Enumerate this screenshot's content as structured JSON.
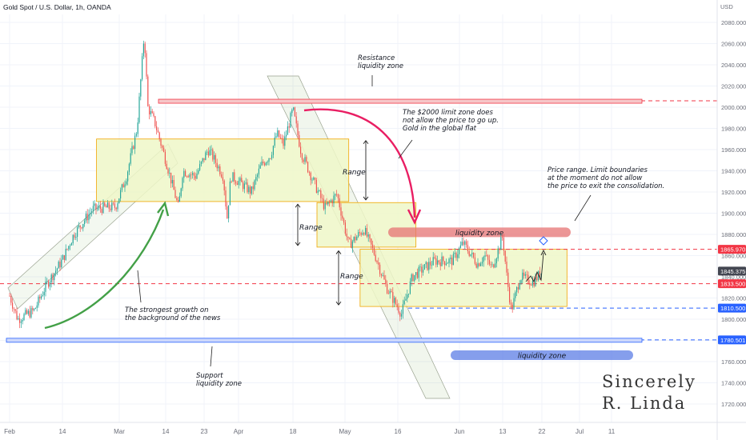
{
  "header": {
    "symbol": "Gold Spot / U.S. Dollar, 1h, OANDA"
  },
  "chart_data": {
    "type": "candlestick",
    "currency": "USD",
    "ylim": [
      1705,
      2095
    ],
    "y_ticks": [
      1720,
      1740,
      1760,
      1780,
      1800,
      1820,
      1840,
      1860,
      1880,
      1900,
      1920,
      1940,
      1960,
      1980,
      2000,
      2020,
      2040,
      2060,
      2080
    ],
    "x_ticks": [
      "Feb",
      "14",
      "Mar",
      "14",
      "23",
      "Apr",
      "18",
      "May",
      "16",
      "Jun",
      "13",
      "22",
      "Jul",
      "11"
    ],
    "price_path": [
      [
        "Feb 1",
        1822
      ],
      [
        "Feb 3",
        1800
      ],
      [
        "Feb 7",
        1808
      ],
      [
        "Feb 10",
        1832
      ],
      [
        "Feb 14",
        1856
      ],
      [
        "Feb 17",
        1880
      ],
      [
        "Feb 22",
        1904
      ],
      [
        "Feb 28",
        1906
      ],
      [
        "Mar 3",
        1935
      ],
      [
        "Mar 6",
        1980
      ],
      [
        "Mar 8",
        2070
      ],
      [
        "Mar 9",
        2000
      ],
      [
        "Mar 11",
        1985
      ],
      [
        "Mar 14",
        1950
      ],
      [
        "Mar 17",
        1905
      ],
      [
        "Mar 18",
        1940
      ],
      [
        "Mar 21",
        1935
      ],
      [
        "Mar 24",
        1960
      ],
      [
        "Mar 25",
        1955
      ],
      [
        "Mar 28",
        1935
      ],
      [
        "Mar 29",
        1895
      ],
      [
        "Mar 30",
        1935
      ],
      [
        "Apr 1",
        1930
      ],
      [
        "Apr 5",
        1920
      ],
      [
        "Apr 8",
        1945
      ],
      [
        "Apr 11",
        1955
      ],
      [
        "Apr 13",
        1975
      ],
      [
        "Apr 15",
        1965
      ],
      [
        "Apr 18",
        1998
      ],
      [
        "Apr 20",
        1958
      ],
      [
        "Apr 22",
        1940
      ],
      [
        "Apr 26",
        1905
      ],
      [
        "Apr 29",
        1918
      ],
      [
        "May 2",
        1870
      ],
      [
        "May 6",
        1885
      ],
      [
        "May 9",
        1860
      ],
      [
        "May 12",
        1830
      ],
      [
        "May 16",
        1805
      ],
      [
        "May 19",
        1840
      ],
      [
        "May 23",
        1850
      ],
      [
        "May 25",
        1855
      ],
      [
        "May 30",
        1855
      ],
      [
        "Jun 2",
        1872
      ],
      [
        "Jun 6",
        1852
      ],
      [
        "Jun 8",
        1860
      ],
      [
        "Jun 10",
        1848
      ],
      [
        "Jun 13",
        1878
      ],
      [
        "Jun 14",
        1838
      ],
      [
        "Jun 15",
        1808
      ],
      [
        "Jun 17",
        1840
      ],
      [
        "Jun 20",
        1835
      ],
      [
        "Jun 22",
        1845
      ]
    ],
    "price_labels": [
      {
        "value": 1865.97,
        "text": "1865.970",
        "color": "#f23645"
      },
      {
        "value": 1845.375,
        "text": "1845.375",
        "color": "#434651"
      },
      {
        "value": 1833.5,
        "text": "1833.500",
        "color": "#f23645"
      },
      {
        "value": 1810.5,
        "text": "1810.500",
        "color": "#2962ff"
      },
      {
        "value": 1780.501,
        "text": "1780.501",
        "color": "#2962ff"
      }
    ],
    "horizontal_levels": [
      {
        "value": 1865.97,
        "color": "#f23645"
      },
      {
        "value": 1833.5,
        "color": "#f23645"
      },
      {
        "value": 1810.5,
        "color": "#2962ff"
      },
      {
        "value": 1780.5,
        "color": "#2962ff"
      },
      {
        "value": 2006,
        "color": "#f23645"
      }
    ],
    "range_boxes": [
      {
        "from": "Feb 23",
        "to": "May 2",
        "low": 1911,
        "high": 1970,
        "label": "Range"
      },
      {
        "from": "Apr 24",
        "to": "May 20",
        "low": 1868,
        "high": 1910,
        "label": "Range"
      },
      {
        "from": "May 5",
        "to": "Jun 28",
        "low": 1812,
        "high": 1866,
        "label": "Range"
      }
    ],
    "liquidity_zones": [
      {
        "label": "liquidity zone",
        "color": "#e57373",
        "value": 1882
      },
      {
        "label": "liquidity zone",
        "color": "#5c7ee6",
        "value": 1766
      }
    ],
    "annotations": [
      "Resistance\nliquidity zone",
      "The $2000 limit zone does\nnot allow the price to go up.\nGold in the global flat",
      "Price range. Limit boundaries\nat the moment do not allow\nthe price to exit the consolidation.",
      "The strongest growth on\nthe background of the news",
      "Support\nliquidity zone"
    ],
    "signature": "Sincerely\nR. Linda",
    "colors": {
      "up": "#26a69a",
      "down": "#ef5350",
      "range_fill": "#eef7c8",
      "range_border": "#f0a500"
    }
  }
}
